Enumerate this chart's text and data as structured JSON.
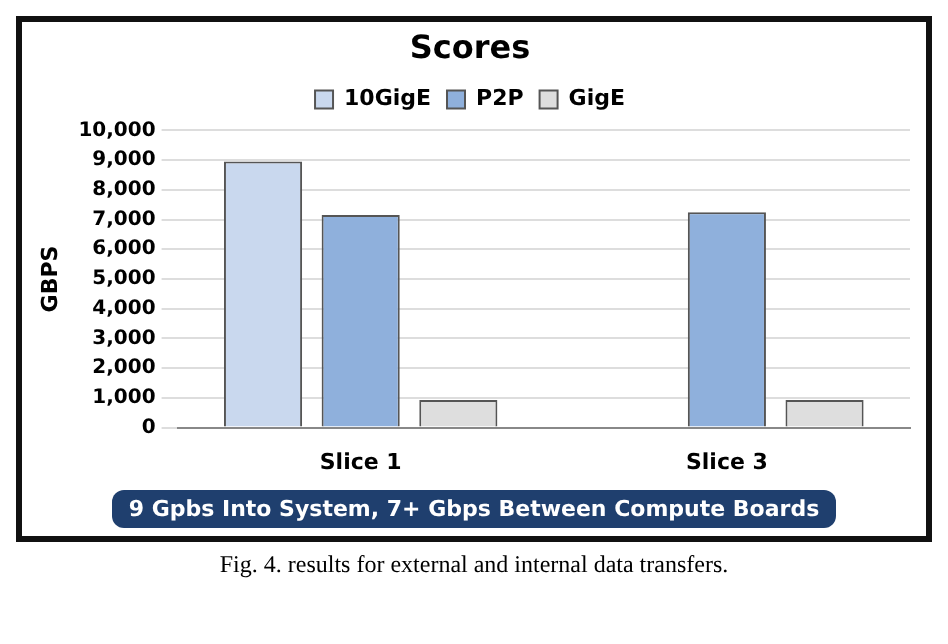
{
  "chart_data": {
    "type": "bar",
    "title": "Scores",
    "ylabel": "GBPS",
    "categories": [
      "Slice 1",
      "Slice 3"
    ],
    "series": [
      {
        "name": "10GigE",
        "color": "#c9d8ee",
        "values": [
          8950,
          null
        ]
      },
      {
        "name": "P2P",
        "color": "#8fb0dc",
        "values": [
          7150,
          7250
        ]
      },
      {
        "name": "GigE",
        "color": "#dedede",
        "values": [
          930,
          930
        ]
      }
    ],
    "ylim": [
      0,
      10000
    ],
    "yticks": [
      {
        "value": 0,
        "label": "0"
      },
      {
        "value": 1000,
        "label": "1,000"
      },
      {
        "value": 2000,
        "label": "2,000"
      },
      {
        "value": 3000,
        "label": "3,000"
      },
      {
        "value": 4000,
        "label": "4,000"
      },
      {
        "value": 5000,
        "label": "5,000"
      },
      {
        "value": 6000,
        "label": "6,000"
      },
      {
        "value": 7000,
        "label": "7,000"
      },
      {
        "value": 8000,
        "label": "8,000"
      },
      {
        "value": 9000,
        "label": "9,000"
      },
      {
        "value": 10000,
        "label": "10,000"
      }
    ],
    "grid": "y",
    "legend": "top",
    "annotations": [
      "9 Gpbs Into System, 7+ Gbps Between Compute Boards",
      "Fig. 4.    results for external and internal data transfers."
    ]
  }
}
